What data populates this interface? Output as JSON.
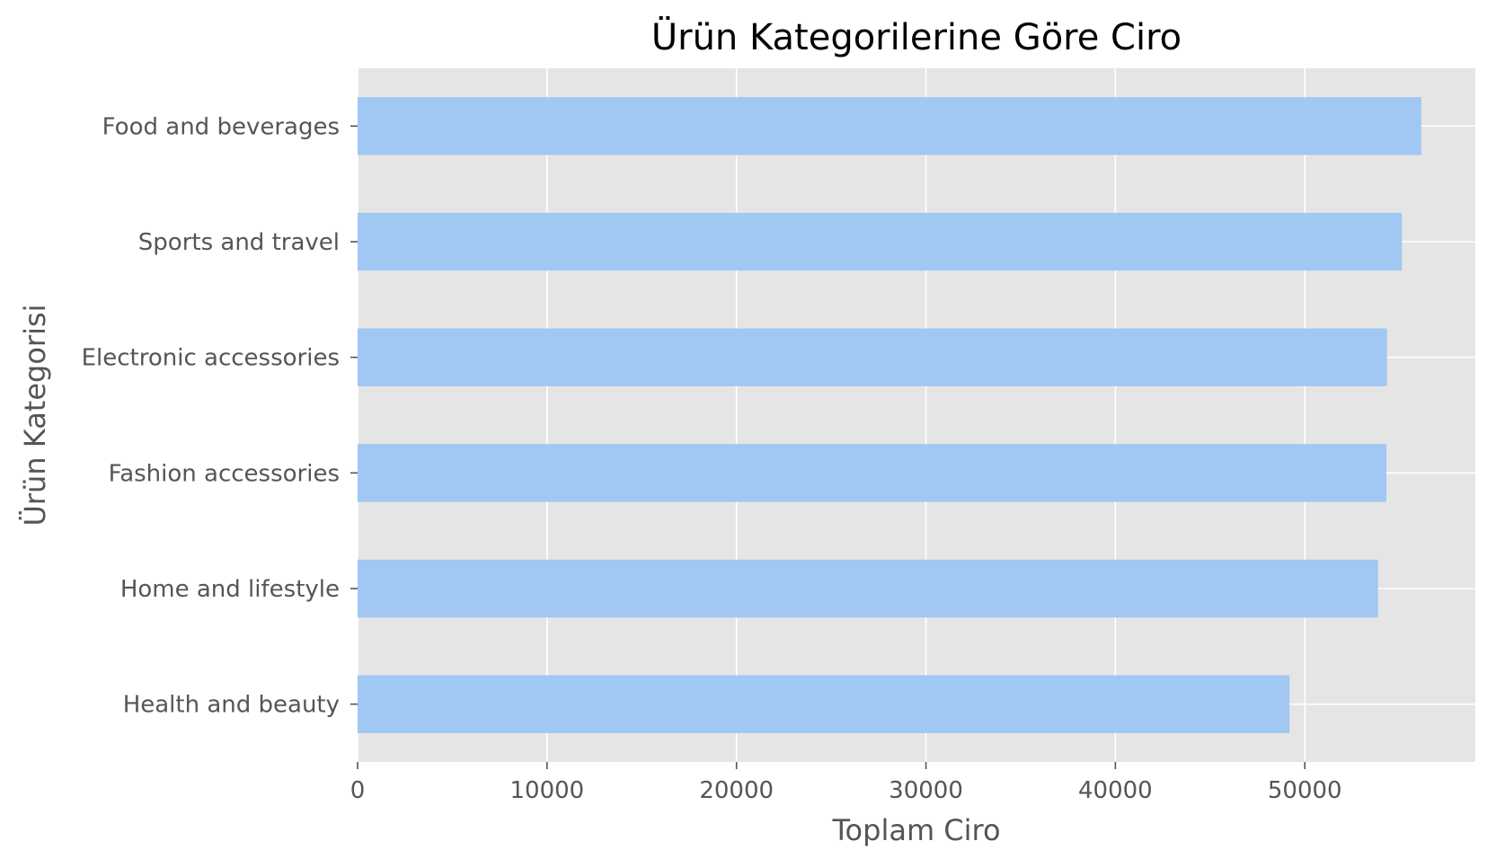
{
  "chart_data": {
    "type": "bar",
    "orientation": "horizontal",
    "title": "Ürün Kategorilerine Göre Ciro",
    "xlabel": "Toplam Ciro",
    "ylabel": "Ürün Kategorisi",
    "categories": [
      "Food and beverages",
      "Sports and travel",
      "Electronic accessories",
      "Fashion accessories",
      "Home and lifestyle",
      "Health and beauty"
    ],
    "values": [
      56145,
      55123,
      54338,
      54306,
      53862,
      49194
    ],
    "xlim": [
      0,
      59000
    ],
    "xticks": [
      0,
      10000,
      20000,
      30000,
      40000,
      50000
    ],
    "xtick_labels": [
      "0",
      "10000",
      "20000",
      "30000",
      "40000",
      "50000"
    ],
    "grid": true,
    "bar_color": "#a1c7f3",
    "plot_background": "#e5e5e5",
    "grid_color": "#ffffff"
  }
}
